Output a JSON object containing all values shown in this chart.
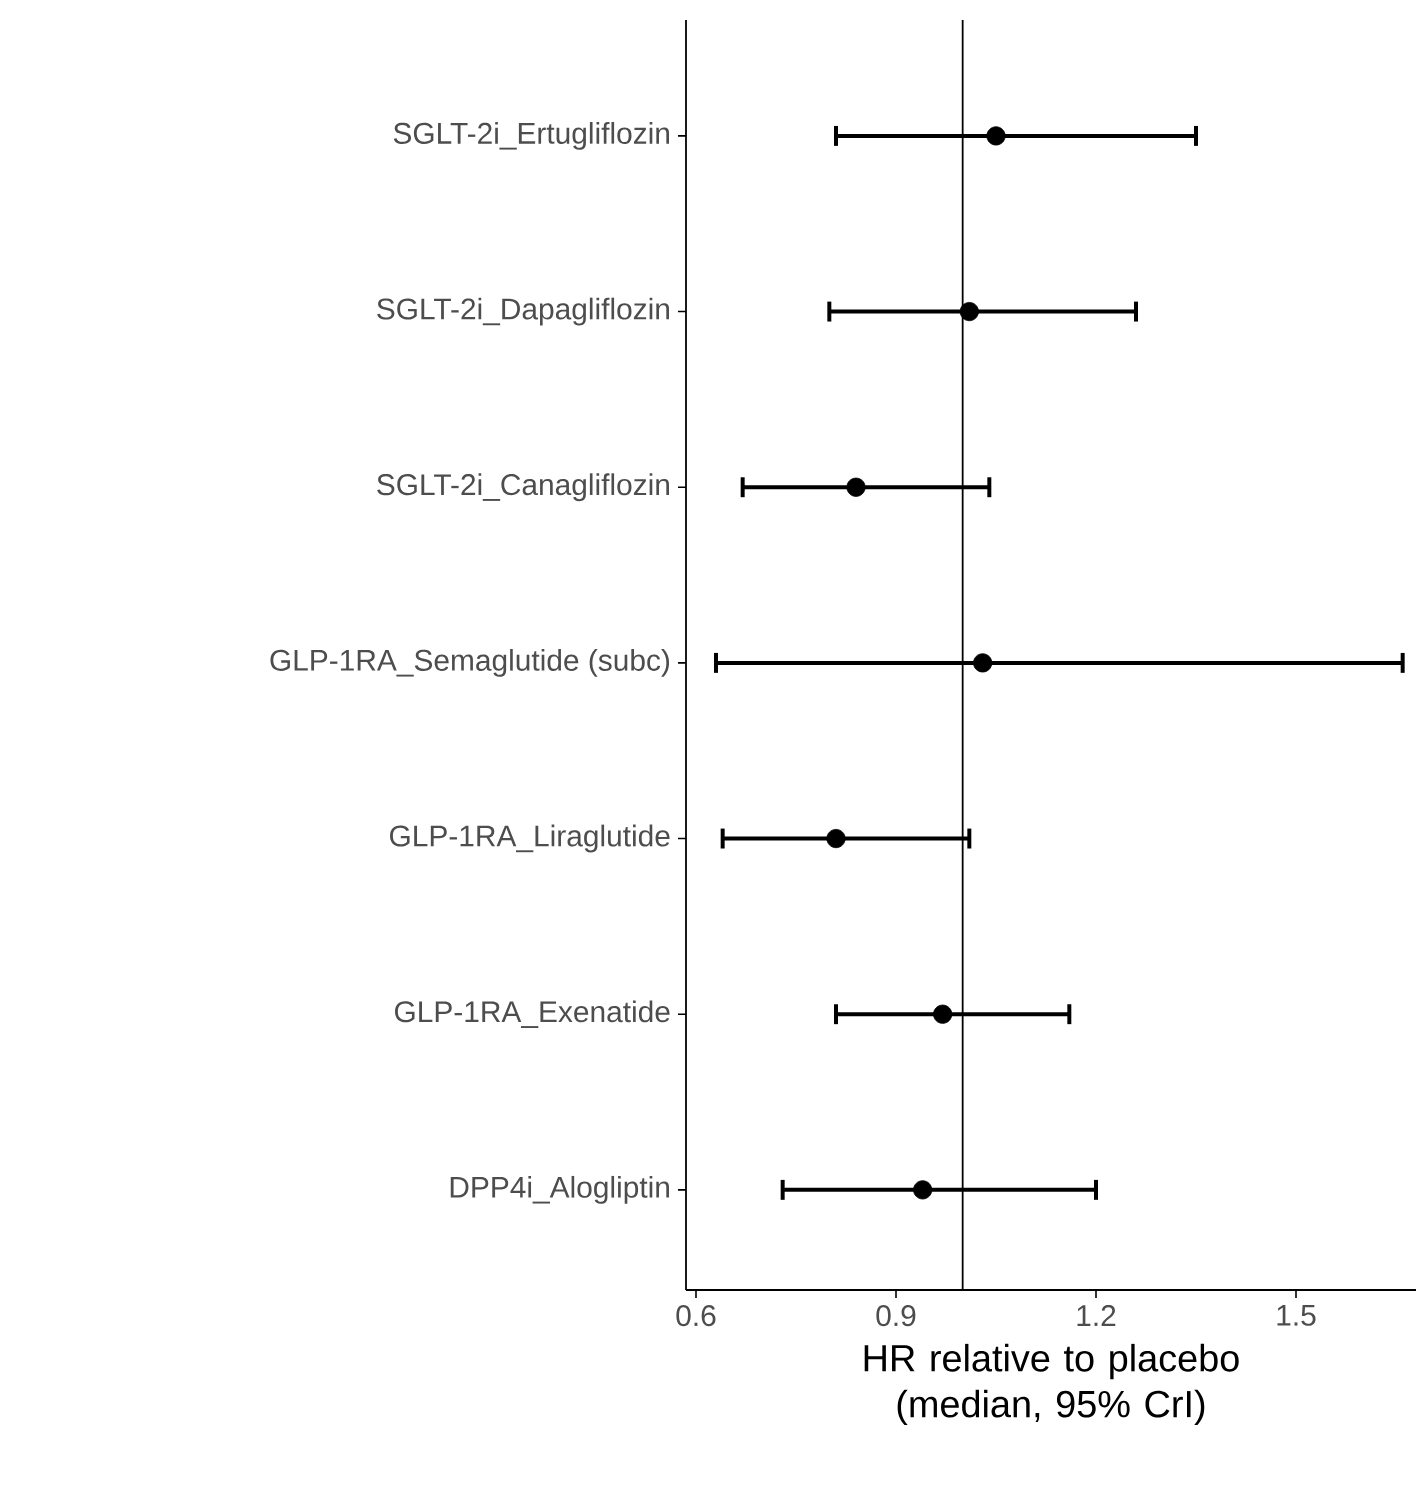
{
  "chart_data": {
    "type": "scatter",
    "orientation": "horizontal",
    "categories": [
      "SGLT-2i_Ertugliflozin",
      "SGLT-2i_Dapagliflozin",
      "SGLT-2i_Canagliflozin",
      "GLP-1RA_Semaglutide (subc)",
      "GLP-1RA_Liraglutide",
      "GLP-1RA_Exenatide",
      "DPP4i_Alogliptin"
    ],
    "values": [
      1.05,
      1.01,
      0.84,
      1.03,
      0.81,
      0.97,
      0.94
    ],
    "errors": [
      [
        0.81,
        1.35
      ],
      [
        0.8,
        1.26
      ],
      [
        0.67,
        1.04
      ],
      [
        0.63,
        1.66
      ],
      [
        0.64,
        1.01
      ],
      [
        0.81,
        1.16
      ],
      [
        0.73,
        1.2
      ]
    ],
    "color": "#000000",
    "marker": "circle",
    "xlim": [
      0.585,
      1.68
    ],
    "xticks": [
      0.6,
      0.9,
      1.2,
      1.5
    ],
    "xlabel": "HR relative to placebo (median, 95% CrI)",
    "ref_lines": [
      {
        "axis": "x",
        "value": 1.0,
        "color": "#000000"
      }
    ]
  }
}
